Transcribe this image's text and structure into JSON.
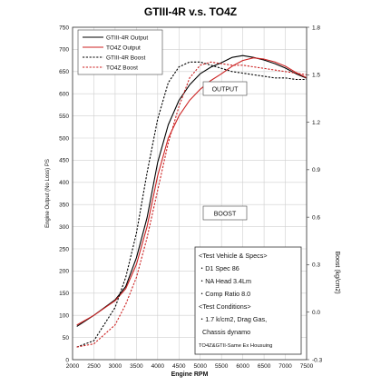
{
  "chart_data": {
    "type": "line",
    "title": "GTIII-4R v.s. TO4Z",
    "xlabel": "Engine RPM",
    "ylabel_left": "Engine Output (No Loss) PS",
    "ylabel_right": "Boost (kg/cm2)",
    "xlim": [
      2000,
      7500
    ],
    "ylim_left": [
      0,
      750
    ],
    "ylim_right": [
      -0.3,
      1.8
    ],
    "x_ticks": [
      2000,
      2500,
      3000,
      3500,
      4000,
      4500,
      5000,
      5500,
      6000,
      6500,
      7000,
      7500
    ],
    "y_ticks_left": [
      0,
      50,
      100,
      150,
      200,
      250,
      300,
      350,
      400,
      450,
      500,
      550,
      600,
      650,
      700,
      750
    ],
    "y_ticks_right": [
      -0.3,
      0.0,
      0.3,
      0.6,
      0.9,
      1.2,
      1.5,
      1.8
    ],
    "grid": true,
    "legend_position": "top-left",
    "legend": [
      "GTIII-4R Output",
      "TO4Z Output",
      "GTIII-4R Boost",
      "TO4Z Boost"
    ],
    "annotations": {
      "output_label": "OUTPUT",
      "boost_label": "BOOST",
      "specs_lines": [
        "<Test Vehicle & Specs>",
        "・D1 Spec 86",
        "・NA Head 3.4Lm",
        "・Comp Ratio 8.0",
        "<Test Conditions>",
        "・1.7 k/cm2, Drag Gas,",
        "  Chassis dynamo",
        "TO4Z&GTII-Same Ex Housuing"
      ]
    },
    "series": [
      {
        "name": "GTIII-4R Output",
        "axis": "left",
        "color": "#000000",
        "dashed": false,
        "x": [
          2100,
          2500,
          3000,
          3250,
          3500,
          3750,
          4000,
          4250,
          4500,
          4750,
          5000,
          5250,
          5500,
          5750,
          6000,
          6250,
          6500,
          6750,
          7000,
          7250,
          7500
        ],
        "y": [
          75,
          100,
          135,
          165,
          230,
          320,
          445,
          530,
          585,
          620,
          645,
          660,
          670,
          682,
          686,
          682,
          676,
          668,
          658,
          645,
          635
        ]
      },
      {
        "name": "TO4Z Output",
        "axis": "left",
        "color": "#cc2222",
        "dashed": false,
        "x": [
          2100,
          2500,
          3000,
          3250,
          3500,
          3750,
          4000,
          4250,
          4500,
          4750,
          5000,
          5250,
          5500,
          5750,
          6000,
          6250,
          6500,
          6750,
          7000,
          7250,
          7500
        ],
        "y": [
          78,
          100,
          133,
          160,
          215,
          300,
          415,
          500,
          550,
          585,
          610,
          630,
          645,
          662,
          675,
          681,
          678,
          672,
          662,
          648,
          636
        ]
      },
      {
        "name": "GTIII-4R Boost",
        "axis": "right",
        "color": "#000000",
        "dashed": true,
        "x": [
          2100,
          2500,
          3000,
          3250,
          3500,
          3750,
          4000,
          4250,
          4500,
          4750,
          5000,
          5250,
          5500,
          5750,
          6000,
          6250,
          6500,
          6750,
          7000,
          7250,
          7500
        ],
        "y": [
          -0.22,
          -0.18,
          0.03,
          0.22,
          0.5,
          0.88,
          1.22,
          1.45,
          1.55,
          1.58,
          1.58,
          1.56,
          1.54,
          1.52,
          1.51,
          1.5,
          1.49,
          1.48,
          1.48,
          1.47,
          1.47
        ]
      },
      {
        "name": "TO4Z Boost",
        "axis": "right",
        "color": "#cc2222",
        "dashed": true,
        "x": [
          2100,
          2500,
          3000,
          3250,
          3500,
          3750,
          4000,
          4250,
          4500,
          4750,
          5000,
          5250,
          5500,
          5750,
          6000,
          6250,
          6500,
          6750,
          7000,
          7250,
          7500
        ],
        "y": [
          -0.22,
          -0.2,
          -0.08,
          0.05,
          0.22,
          0.47,
          0.77,
          1.07,
          1.3,
          1.48,
          1.56,
          1.58,
          1.57,
          1.56,
          1.56,
          1.55,
          1.54,
          1.53,
          1.52,
          1.51,
          1.5
        ]
      }
    ]
  }
}
